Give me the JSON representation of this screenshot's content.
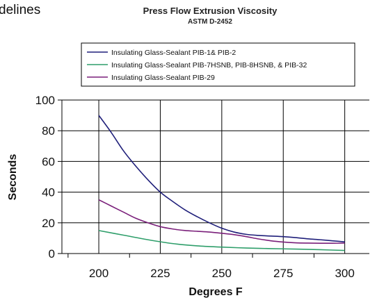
{
  "page_fragment": "delines",
  "chart_data": {
    "type": "line",
    "title": "Press Flow Extrusion Viscosity",
    "subtitle": "ASTM D-2452",
    "xlabel": "Degrees F",
    "ylabel": "Seconds",
    "xlim": [
      185,
      310
    ],
    "ylim": [
      0,
      100
    ],
    "x_ticks": [
      "200",
      "225",
      "250",
      "275",
      "300"
    ],
    "y_ticks": [
      "0",
      "20",
      "40",
      "60",
      "80",
      "100"
    ],
    "grid": true,
    "legend_position": "top",
    "series": [
      {
        "name": "Insulating Glass-Sealant PIB-1& PIB-2",
        "color": "#1f1f7a",
        "x": [
          200,
          205,
          210,
          215,
          220,
          225,
          230,
          235,
          240,
          245,
          250,
          255,
          260,
          265,
          270,
          275,
          280,
          285,
          290,
          295,
          300
        ],
        "y": [
          90,
          79,
          67,
          57,
          48,
          40,
          34,
          28.5,
          24,
          20,
          16.5,
          14,
          12.5,
          11.8,
          11.4,
          11,
          10.4,
          9.6,
          9,
          8.3,
          7.6
        ]
      },
      {
        "name": "Insulating Glass-Sealant PIB-7HSNB, PIB-8HSNB, & PIB-32",
        "color": "#2e9e6a",
        "x": [
          200,
          210,
          220,
          230,
          240,
          250,
          260,
          270,
          280,
          290,
          300
        ],
        "y": [
          15,
          12,
          9,
          6.5,
          5,
          4.2,
          3.6,
          3.2,
          2.9,
          2.5,
          2
        ]
      },
      {
        "name": "Insulating Glass-Sealant PIB-29",
        "color": "#7a1f7a",
        "x": [
          200,
          205,
          210,
          215,
          220,
          225,
          230,
          235,
          240,
          245,
          250,
          255,
          260,
          265,
          270,
          275,
          280,
          285,
          290,
          295,
          300
        ],
        "y": [
          35,
          31,
          27,
          23,
          20,
          17.5,
          16,
          15,
          14.5,
          14,
          13.2,
          12.3,
          11,
          9.5,
          8.3,
          7.5,
          7,
          6.8,
          6.7,
          6.7,
          6.8
        ]
      }
    ]
  }
}
